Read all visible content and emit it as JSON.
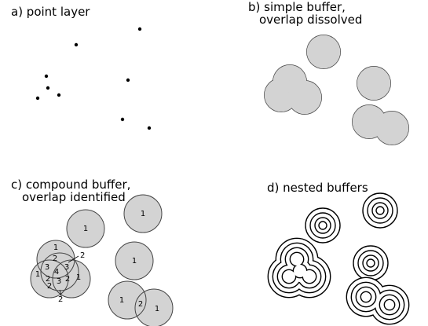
{
  "panels": {
    "a": {
      "title": "a) point layer"
    },
    "b": {
      "title_line1": "b) simple buffer,",
      "title_line2": "overlap dissolved"
    },
    "c": {
      "title_line1": "c) compound buffer,",
      "title_line2": "overlap identified"
    },
    "d": {
      "title": "d) nested buffers"
    }
  },
  "compound_labels": {
    "single_top": "1",
    "single_upper_left": "1",
    "single_mid": "1",
    "pair_left": "1",
    "pair_overlap": "2",
    "pair_right": "1",
    "cluster_top": "1",
    "cluster_upper_overlap": "2",
    "cluster_left_outer": "1",
    "cluster_left_overlap": "2",
    "cluster_center_left": "3",
    "cluster_center": "4",
    "cluster_center_right": "3",
    "cluster_lower_left": "2",
    "cluster_lower_mid": "3",
    "cluster_lower_right": "2",
    "cluster_right_outer": "1",
    "callout_right": "2",
    "callout_bottom": "2"
  },
  "colors": {
    "buffer_fill": "#d3d3d3",
    "outline": "#444444",
    "point": "#000000"
  }
}
